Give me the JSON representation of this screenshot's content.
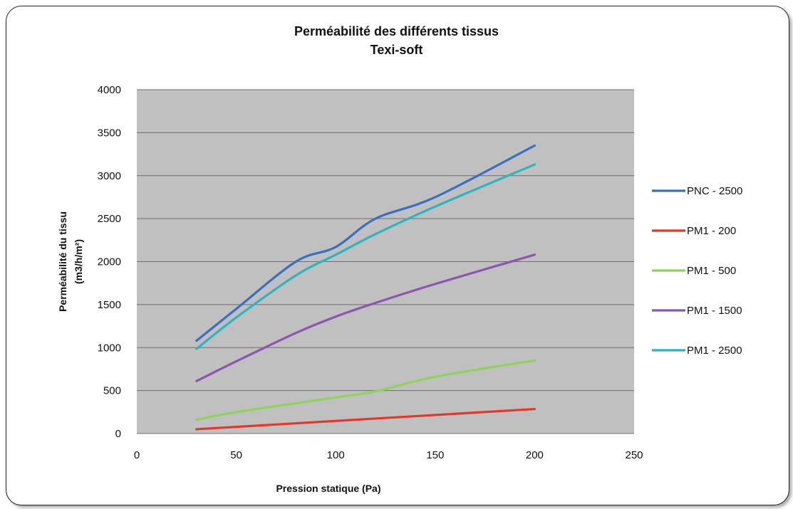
{
  "chart_data": {
    "type": "line",
    "title": "Perméabilité des différents tissus",
    "subtitle": "Texi-soft",
    "xlabel": "Pression statique (Pa)",
    "ylabel_line1": "Perméabilité du tissu",
    "ylabel_line2": "(m3/h/m²)",
    "xlim": [
      0,
      250
    ],
    "ylim": [
      0,
      4000
    ],
    "xticks": [
      "0",
      "50",
      "100",
      "150",
      "200",
      "250"
    ],
    "yticks": [
      "0",
      "500",
      "1000",
      "1500",
      "2000",
      "2500",
      "3000",
      "3500",
      "4000"
    ],
    "grid": "horizontal",
    "legend_position": "right",
    "plot_background": "#c0c0c0",
    "series": [
      {
        "name": "PNC - 2500",
        "color": "#3a6fbf",
        "x": [
          30,
          50,
          80,
          100,
          120,
          150,
          200
        ],
        "y": [
          1080,
          1450,
          2000,
          2170,
          2500,
          2750,
          3350
        ]
      },
      {
        "name": "PM1 - 200",
        "color": "#e2382a",
        "x": [
          30,
          200
        ],
        "y": [
          50,
          285
        ]
      },
      {
        "name": "PM1 - 500",
        "color": "#8ed35a",
        "x": [
          30,
          50,
          100,
          120,
          150,
          200
        ],
        "y": [
          160,
          250,
          420,
          490,
          660,
          850
        ]
      },
      {
        "name": "PM1 - 1500",
        "color": "#8b55b0",
        "x": [
          30,
          50,
          80,
          100,
          120,
          150,
          200
        ],
        "y": [
          610,
          840,
          1170,
          1360,
          1520,
          1740,
          2080
        ]
      },
      {
        "name": "PM1 - 2500",
        "color": "#2ab5bf",
        "x": [
          30,
          50,
          80,
          100,
          120,
          150,
          200
        ],
        "y": [
          985,
          1350,
          1840,
          2080,
          2320,
          2640,
          3130
        ]
      }
    ]
  }
}
